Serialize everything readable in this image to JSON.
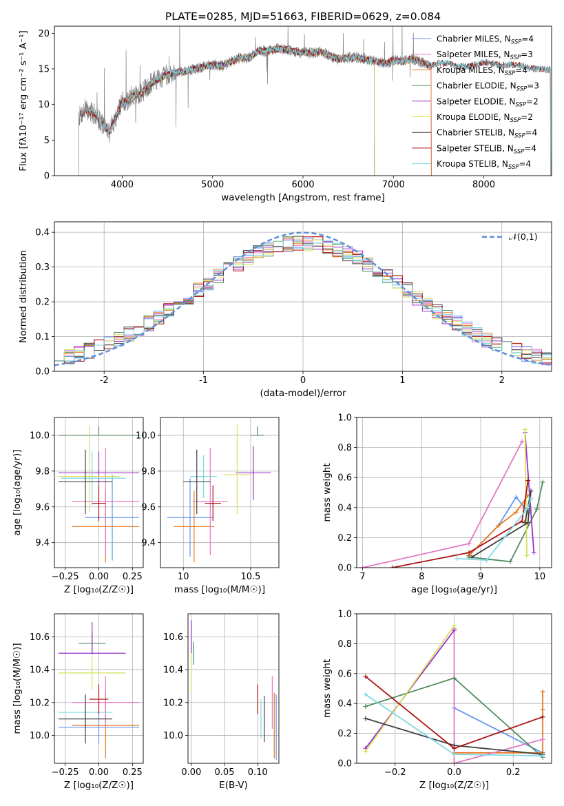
{
  "figure": {
    "title": "PLATE=0285, MJD=51663, FIBERID=0629, z=0.084"
  },
  "chart_data": [
    {
      "type": "line",
      "panel": "spectrum",
      "xlabel": "wavelength [Angstrom, rest frame]",
      "ylabel": "Flux [fλ10⁻¹⁷ erg cm⁻² s⁻¹ A⁻¹]",
      "xlim": [
        3250,
        8750
      ],
      "ylim": [
        0,
        21
      ],
      "xticks": [
        4000,
        5000,
        6000,
        7000,
        8000
      ],
      "yticks": [
        0,
        5,
        10,
        15,
        20
      ],
      "grid": false,
      "legend_position": "right",
      "observed_color": "#808080",
      "continuum_anchors": {
        "x": [
          3520,
          3600,
          3700,
          3800,
          3860,
          3900,
          3960,
          4000,
          4060,
          4100,
          4200,
          4300,
          4400,
          4500,
          4600,
          4700,
          4800,
          4900,
          5000,
          5100,
          5200,
          5300,
          5400,
          5500,
          5600,
          5700,
          5800,
          5900,
          6000,
          6100,
          6200,
          6300,
          6400,
          6500,
          6600,
          6700,
          6800,
          6900,
          7000,
          7100,
          7200,
          7300,
          7400,
          7500,
          7600,
          7700,
          7800,
          7900,
          8000,
          8100,
          8200,
          8300,
          8400,
          8500,
          8700
        ],
        "y": [
          8.3,
          9.2,
          8.6,
          7.0,
          6.2,
          7.5,
          9.0,
          10.5,
          10.3,
          11.2,
          11.4,
          12.8,
          13.6,
          14.2,
          14.6,
          14.6,
          15.0,
          15.3,
          15.6,
          15.4,
          16.0,
          16.6,
          16.5,
          17.5,
          17.5,
          17.8,
          17.8,
          17.4,
          17.3,
          17.2,
          17.5,
          16.8,
          16.3,
          16.6,
          16.6,
          16.4,
          16.1,
          15.7,
          16.2,
          16.0,
          16.4,
          16.0,
          15.4,
          15.8,
          15.8,
          15.3,
          15.3,
          15.6,
          16.0,
          15.7,
          15.5,
          15.6,
          15.5,
          15.1,
          14.9
        ]
      },
      "series": [
        {
          "name": "Chabrier MILES, N",
          "nssp": "=4",
          "color": "#6495ED",
          "wmin": 3540,
          "wmax": 7420
        },
        {
          "name": "Salpeter MILES, N",
          "nssp": "=3",
          "color": "#E377C2",
          "wmin": 3540,
          "wmax": 7420
        },
        {
          "name": "Kroupa MILES, N",
          "nssp": "=4",
          "color": "#E6761B",
          "wmin": 3540,
          "wmax": 7420
        },
        {
          "name": "Chabrier ELODIE, N",
          "nssp": "=3",
          "color": "#4E8C5C",
          "wmin": 3920,
          "wmax": 6790
        },
        {
          "name": "Salpeter ELODIE, N",
          "nssp": "=2",
          "color": "#9B30C8",
          "wmin": 3920,
          "wmax": 6790
        },
        {
          "name": "Kroupa ELODIE, N",
          "nssp": "=2",
          "color": "#D4E157",
          "wmin": 3920,
          "wmax": 6790
        },
        {
          "name": "Chabrier STELIB, N",
          "nssp": "=4",
          "color": "#404040",
          "wmin": 3540,
          "wmax": 8740
        },
        {
          "name": "Salpeter STELIB, N",
          "nssp": "=4",
          "color": "#AA1111",
          "wmin": 3540,
          "wmax": 8740
        },
        {
          "name": "Kroupa STELIB, N",
          "nssp": "=4",
          "color": "#7FD8E0",
          "wmin": 3540,
          "wmax": 8740
        }
      ],
      "legend_subscript": "SSP"
    },
    {
      "type": "histogram",
      "panel": "residuals",
      "xlabel": "(data-model)/error",
      "ylabel": "Normed distribution",
      "xlim": [
        -2.5,
        2.5
      ],
      "ylim": [
        0,
        0.43
      ],
      "xticks": [
        -2,
        -1,
        0,
        1,
        2
      ],
      "yticks": [
        0.0,
        0.1,
        0.2,
        0.3,
        0.4
      ],
      "grid": true,
      "bin_width": 0.1,
      "reference_curve": {
        "name": "𝒩(0,1)",
        "mean": 0,
        "sigma": 1,
        "color": "#5B8DDB"
      },
      "legend_position": "top-right"
    },
    {
      "type": "errorbar",
      "panel": "age-vs-Z",
      "xlabel": "Z [log₁₀(Z/Z☉)]",
      "ylabel": "age  [log₁₀(age/yr)]",
      "xlim": [
        -0.33,
        0.33
      ],
      "ylim": [
        9.26,
        10.1
      ],
      "xticks": [
        -0.25,
        0.0,
        0.25
      ],
      "xticklabels": [
        "−0.25",
        "0.00",
        "0.25"
      ],
      "yticks": [
        9.4,
        9.6,
        9.8,
        10.0
      ],
      "grid": true,
      "points": [
        {
          "x": 0.0,
          "xerr": [
            0.3,
            0.3
          ],
          "y": 10.0,
          "yerr": [
            0.0,
            0.05
          ],
          "color": "#4E8C5C"
        },
        {
          "x": 0.1,
          "xerr": [
            0.2,
            0.2
          ],
          "y": 9.54,
          "yerr": [
            0.24,
            0.24
          ],
          "color": "#6495ED"
        },
        {
          "x": 0.05,
          "xerr": [
            0.25,
            0.25
          ],
          "y": 9.49,
          "yerr": [
            0.2,
            0.2
          ],
          "color": "#E6761B"
        },
        {
          "x": 0.05,
          "xerr": [
            0.25,
            0.25
          ],
          "y": 9.63,
          "yerr": [
            0.3,
            0.3
          ],
          "color": "#E377C2"
        },
        {
          "x": 0.0,
          "xerr": [
            0.3,
            0.3
          ],
          "y": 9.79,
          "yerr": [
            0.07,
            0.12
          ],
          "color": "#9B30C8"
        },
        {
          "x": -0.07,
          "xerr": [
            0.23,
            0.23
          ],
          "y": 9.77,
          "yerr": [
            0.2,
            0.28
          ],
          "color": "#D4E157"
        },
        {
          "x": -0.05,
          "xerr": [
            0.23,
            0.25
          ],
          "y": 9.76,
          "yerr": [
            0.15,
            0.15
          ],
          "color": "#7FD8E0"
        },
        {
          "x": -0.1,
          "xerr": [
            0.2,
            0.2
          ],
          "y": 9.74,
          "yerr": [
            0.18,
            0.18
          ],
          "color": "#404040"
        },
        {
          "x": 0.0,
          "xerr": [
            0.05,
            0.05
          ],
          "y": 9.62,
          "yerr": [
            0.1,
            0.1
          ],
          "color": "#AA1111"
        }
      ]
    },
    {
      "type": "errorbar",
      "panel": "age-vs-mass",
      "xlabel": "mass [log₁₀(M/M☉)]",
      "ylabel": "",
      "xlim": [
        9.83,
        10.71
      ],
      "ylim": [
        9.26,
        10.1
      ],
      "xticks": [
        10.0,
        10.5
      ],
      "yticks": [
        9.4,
        9.6,
        9.8,
        10.0
      ],
      "grid": true,
      "points": [
        {
          "x": 10.55,
          "xerr": [
            0.05,
            0.05
          ],
          "y": 10.0,
          "yerr": [
            0.0,
            0.05
          ],
          "color": "#4E8C5C"
        },
        {
          "x": 10.05,
          "xerr": [
            0.17,
            0.17
          ],
          "y": 9.54,
          "yerr": [
            0.22,
            0.22
          ],
          "color": "#6495ED"
        },
        {
          "x": 10.08,
          "xerr": [
            0.15,
            0.15
          ],
          "y": 9.49,
          "yerr": [
            0.2,
            0.2
          ],
          "color": "#E6761B"
        },
        {
          "x": 10.2,
          "xerr": [
            0.13,
            0.13
          ],
          "y": 9.63,
          "yerr": [
            0.3,
            0.3
          ],
          "color": "#E377C2"
        },
        {
          "x": 10.52,
          "xerr": [
            0.13,
            0.13
          ],
          "y": 9.79,
          "yerr": [
            0.15,
            0.15
          ],
          "color": "#9B30C8"
        },
        {
          "x": 10.4,
          "xerr": [
            0.1,
            0.1
          ],
          "y": 9.78,
          "yerr": [
            0.22,
            0.28
          ],
          "color": "#D4E157"
        },
        {
          "x": 10.15,
          "xerr": [
            0.1,
            0.1
          ],
          "y": 9.77,
          "yerr": [
            0.12,
            0.12
          ],
          "color": "#7FD8E0"
        },
        {
          "x": 10.1,
          "xerr": [
            0.1,
            0.1
          ],
          "y": 9.74,
          "yerr": [
            0.18,
            0.18
          ],
          "color": "#404040"
        },
        {
          "x": 10.22,
          "xerr": [
            0.06,
            0.06
          ],
          "y": 9.62,
          "yerr": [
            0.1,
            0.1
          ],
          "color": "#AA1111"
        }
      ]
    },
    {
      "type": "line",
      "panel": "mass-weight-vs-age",
      "xlabel": "age  [log₁₀(age/yr)]",
      "ylabel": "mass weight",
      "xlim": [
        6.9,
        10.2
      ],
      "ylim": [
        0,
        1
      ],
      "xticks": [
        7,
        8,
        9,
        10
      ],
      "yticks": [
        0.0,
        0.2,
        0.4,
        0.6,
        0.8,
        1.0
      ],
      "grid": true,
      "series": [
        {
          "color": "#6495ED",
          "x": [
            8.8,
            9.3,
            9.6,
            9.8
          ],
          "y": [
            0.08,
            0.28,
            0.47,
            0.37
          ]
        },
        {
          "color": "#E6761B",
          "x": [
            8.8,
            9.3,
            9.6,
            9.8
          ],
          "y": [
            0.08,
            0.28,
            0.37,
            0.48
          ]
        },
        {
          "color": "#E377C2",
          "x": [
            7.0,
            8.8,
            9.7
          ],
          "y": [
            0.0,
            0.16,
            0.84
          ]
        },
        {
          "color": "#4E8C5C",
          "x": [
            8.8,
            9.5,
            9.95,
            10.05
          ],
          "y": [
            0.07,
            0.04,
            0.39,
            0.57
          ]
        },
        {
          "color": "#9B30C8",
          "x": [
            9.75,
            9.9
          ],
          "y": [
            0.9,
            0.1
          ]
        },
        {
          "color": "#D4E157",
          "x": [
            9.75,
            9.78
          ],
          "y": [
            0.92,
            0.08
          ]
        },
        {
          "color": "#404040",
          "x": [
            8.85,
            9.8,
            9.85,
            9.75
          ],
          "y": [
            0.07,
            0.3,
            0.51,
            0.3
          ]
        },
        {
          "color": "#AA1111",
          "x": [
            7.5,
            8.8,
            9.7,
            9.8
          ],
          "y": [
            0.0,
            0.1,
            0.31,
            0.58
          ]
        },
        {
          "color": "#7FD8E0",
          "x": [
            8.6,
            9.1,
            9.8,
            9.85
          ],
          "y": [
            0.06,
            0.05,
            0.4,
            0.46
          ]
        }
      ]
    },
    {
      "type": "errorbar",
      "panel": "mass-vs-Z",
      "xlabel": "Z [log₁₀(Z/Z☉)]",
      "ylabel": "mass [log₁₀(M/M☉)]",
      "xlim": [
        -0.33,
        0.33
      ],
      "ylim": [
        9.83,
        10.74
      ],
      "xticks": [
        -0.25,
        0.0,
        0.25
      ],
      "xticklabels": [
        "−0.25",
        "0.00",
        "0.25"
      ],
      "yticks": [
        10.0,
        10.2,
        10.4,
        10.6
      ],
      "grid": true,
      "points": [
        {
          "x": -0.05,
          "xerr": [
            0.1,
            0.1
          ],
          "y": 10.56,
          "yerr": [
            0.07,
            0.07
          ],
          "color": "#4E8C5C"
        },
        {
          "x": 0.0,
          "xerr": [
            0.3,
            0.3
          ],
          "y": 10.05,
          "yerr": [
            0.1,
            0.1
          ],
          "color": "#6495ED"
        },
        {
          "x": 0.05,
          "xerr": [
            0.25,
            0.25
          ],
          "y": 10.06,
          "yerr": [
            0.2,
            0.2
          ],
          "color": "#E6761B"
        },
        {
          "x": 0.05,
          "xerr": [
            0.25,
            0.25
          ],
          "y": 10.2,
          "yerr": [
            0.16,
            0.16
          ],
          "color": "#E377C2"
        },
        {
          "x": -0.05,
          "xerr": [
            0.25,
            0.25
          ],
          "y": 10.5,
          "yerr": [
            0.0,
            0.19
          ],
          "color": "#9B30C8"
        },
        {
          "x": -0.05,
          "xerr": [
            0.25,
            0.25
          ],
          "y": 10.38,
          "yerr": [
            0.1,
            0.1
          ],
          "color": "#D4E157"
        },
        {
          "x": -0.1,
          "xerr": [
            0.2,
            0.2
          ],
          "y": 10.14,
          "yerr": [
            0.1,
            0.1
          ],
          "color": "#7FD8E0"
        },
        {
          "x": -0.1,
          "xerr": [
            0.2,
            0.2
          ],
          "y": 10.1,
          "yerr": [
            0.15,
            0.15
          ],
          "color": "#404040"
        },
        {
          "x": 0.0,
          "xerr": [
            0.07,
            0.07
          ],
          "y": 10.22,
          "yerr": [
            0.09,
            0.09
          ],
          "color": "#AA1111"
        }
      ]
    },
    {
      "type": "errorbar",
      "panel": "mass-vs-EBV",
      "xlabel": "E(B-V)",
      "ylabel": "",
      "xlim": [
        -0.005,
        0.132
      ],
      "ylim": [
        9.83,
        10.74
      ],
      "xticks": [
        0.0,
        0.05,
        0.1
      ],
      "xticklabels": [
        "0.00",
        "0.05",
        "0.10"
      ],
      "yticks": [
        10.0,
        10.2,
        10.4,
        10.6
      ],
      "grid": true,
      "points": [
        {
          "x": 0.003,
          "xerr": [
            0,
            0
          ],
          "y": 10.5,
          "yerr": [
            0.07,
            0.07
          ],
          "color": "#4E8C5C"
        },
        {
          "x": 0.0,
          "xerr": [
            0,
            0
          ],
          "y": 10.6,
          "yerr": [
            0.1,
            0.1
          ],
          "color": "#9B30C8"
        },
        {
          "x": 0.0,
          "xerr": [
            0,
            0
          ],
          "y": 10.38,
          "yerr": [
            0.12,
            0.12
          ],
          "color": "#D4E157"
        },
        {
          "x": 0.128,
          "xerr": [
            0,
            0
          ],
          "y": 10.05,
          "yerr": [
            0.2,
            0.2
          ],
          "color": "#6495ED"
        },
        {
          "x": 0.125,
          "xerr": [
            0,
            0
          ],
          "y": 10.06,
          "yerr": [
            0.2,
            0.2
          ],
          "color": "#E6761B"
        },
        {
          "x": 0.122,
          "xerr": [
            0,
            0
          ],
          "y": 10.2,
          "yerr": [
            0.16,
            0.16
          ],
          "color": "#E377C2"
        },
        {
          "x": 0.105,
          "xerr": [
            0,
            0
          ],
          "y": 10.1,
          "yerr": [
            0.12,
            0.12
          ],
          "color": "#7FD8E0"
        },
        {
          "x": 0.11,
          "xerr": [
            0,
            0
          ],
          "y": 10.1,
          "yerr": [
            0.14,
            0.14
          ],
          "color": "#404040"
        },
        {
          "x": 0.1,
          "xerr": [
            0,
            0
          ],
          "y": 10.22,
          "yerr": [
            0.09,
            0.09
          ],
          "color": "#AA1111"
        }
      ]
    },
    {
      "type": "line",
      "panel": "mass-weight-vs-Z",
      "xlabel": "Z [log₁₀(Z/Z☉)]",
      "ylabel": "mass weight",
      "xlim": [
        -0.33,
        0.33
      ],
      "ylim": [
        0,
        1
      ],
      "xticks": [
        -0.2,
        0.0,
        0.2
      ],
      "xticklabels": [
        "−0.2",
        "0.0",
        "0.2"
      ],
      "yticks": [
        0.0,
        0.2,
        0.4,
        0.6,
        0.8,
        1.0
      ],
      "grid": true,
      "series": [
        {
          "color": "#6495ED",
          "x": [
            0.0,
            0.3
          ],
          "y": [
            0.37,
            0.07
          ]
        },
        {
          "color": "#E6761B",
          "x": [
            0.0,
            0.3,
            0.3,
            0.3
          ],
          "y": [
            0.07,
            0.07,
            0.36,
            0.48
          ]
        },
        {
          "color": "#E377C2",
          "x": [
            0.0,
            0.0,
            0.0,
            0.3
          ],
          "y": [
            0.9,
            0.0,
            0.0,
            0.16
          ]
        },
        {
          "color": "#4E8C5C",
          "x": [
            -0.3,
            0.0,
            0.3
          ],
          "y": [
            0.38,
            0.57,
            0.04
          ]
        },
        {
          "color": "#9B30C8",
          "x": [
            -0.3,
            0.0
          ],
          "y": [
            0.1,
            0.89
          ]
        },
        {
          "color": "#D4E157",
          "x": [
            -0.3,
            0.0
          ],
          "y": [
            0.08,
            0.92
          ]
        },
        {
          "color": "#404040",
          "x": [
            -0.3,
            0.0,
            0.3
          ],
          "y": [
            0.3,
            0.12,
            0.06
          ]
        },
        {
          "color": "#AA1111",
          "x": [
            -0.3,
            0.0,
            0.3
          ],
          "y": [
            0.58,
            0.1,
            0.31
          ]
        },
        {
          "color": "#7FD8E0",
          "x": [
            -0.3,
            0.0,
            0.3
          ],
          "y": [
            0.46,
            0.06,
            0.05
          ]
        }
      ]
    }
  ]
}
